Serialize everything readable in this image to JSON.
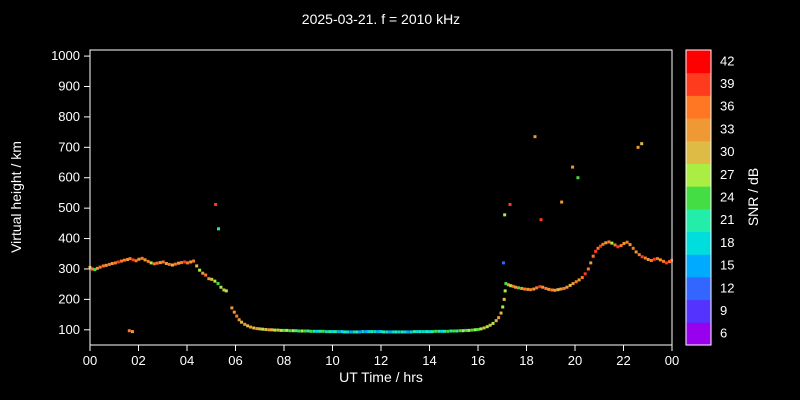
{
  "chart_data": {
    "type": "scatter",
    "title": "2025-03-21. f = 2010 kHz",
    "xlabel": "UT Time / hrs",
    "ylabel": "Virtual height / km",
    "xlim": [
      0,
      24
    ],
    "ylim": [
      50,
      1020
    ],
    "grid": false,
    "background": "#000000",
    "frame_color": "#ffffff",
    "text_color": "#ffffff",
    "x_ticks": {
      "values": [
        0,
        2,
        4,
        6,
        8,
        10,
        12,
        14,
        16,
        18,
        20,
        22,
        24
      ],
      "labels": [
        "00",
        "02",
        "04",
        "06",
        "08",
        "10",
        "12",
        "14",
        "16",
        "18",
        "20",
        "22",
        "00"
      ]
    },
    "y_ticks": [
      100,
      200,
      300,
      400,
      500,
      600,
      700,
      800,
      900,
      1000
    ],
    "colorbar": {
      "label": "SNR / dB",
      "min": 6,
      "max": 42,
      "tick_step": 3,
      "ticks": [
        6,
        9,
        12,
        15,
        18,
        21,
        24,
        27,
        30,
        33,
        36,
        39,
        42
      ],
      "colors": {
        "6": "#9900ee",
        "9": "#5533ff",
        "12": "#3366ff",
        "15": "#00aaff",
        "18": "#00dddd",
        "21": "#22eeaa",
        "24": "#44dd44",
        "27": "#aaee44",
        "30": "#ddbb44",
        "33": "#ee9933",
        "36": "#ff7722",
        "39": "#ff3b1e",
        "42": "#ff0000"
      }
    },
    "points": [
      [
        0.0,
        305,
        34
      ],
      [
        0.1,
        300,
        36
      ],
      [
        0.2,
        298,
        24
      ],
      [
        0.3,
        302,
        33
      ],
      [
        0.42,
        306,
        35
      ],
      [
        0.55,
        310,
        36
      ],
      [
        0.67,
        312,
        34
      ],
      [
        0.8,
        315,
        36
      ],
      [
        0.92,
        318,
        33
      ],
      [
        1.05,
        320,
        36
      ],
      [
        1.17,
        323,
        38
      ],
      [
        1.3,
        326,
        35
      ],
      [
        1.42,
        329,
        36
      ],
      [
        1.55,
        331,
        33
      ],
      [
        1.65,
        334,
        36
      ],
      [
        1.78,
        330,
        39
      ],
      [
        1.9,
        327,
        36
      ],
      [
        2.02,
        332,
        34
      ],
      [
        2.15,
        335,
        36
      ],
      [
        2.27,
        330,
        33
      ],
      [
        2.4,
        325,
        36
      ],
      [
        2.52,
        320,
        27
      ],
      [
        2.65,
        317,
        35
      ],
      [
        2.77,
        319,
        36
      ],
      [
        2.9,
        321,
        34
      ],
      [
        3.02,
        323,
        36
      ],
      [
        3.15,
        318,
        33
      ],
      [
        3.27,
        315,
        36
      ],
      [
        3.4,
        313,
        30
      ],
      [
        3.52,
        316,
        36
      ],
      [
        3.65,
        319,
        34
      ],
      [
        3.77,
        321,
        36
      ],
      [
        3.9,
        323,
        38
      ],
      [
        4.02,
        320,
        36
      ],
      [
        4.15,
        323,
        33
      ],
      [
        4.27,
        326,
        36
      ],
      [
        4.4,
        310,
        30
      ],
      [
        4.52,
        296,
        27
      ],
      [
        4.65,
        286,
        33
      ],
      [
        4.77,
        280,
        36
      ],
      [
        4.9,
        268,
        33
      ],
      [
        5.02,
        266,
        30
      ],
      [
        5.15,
        260,
        27
      ],
      [
        5.28,
        252,
        24
      ],
      [
        5.4,
        240,
        27
      ],
      [
        5.52,
        231,
        30
      ],
      [
        5.62,
        228,
        27
      ],
      [
        1.62,
        97,
        36
      ],
      [
        1.75,
        94,
        33
      ],
      [
        5.18,
        512,
        39
      ],
      [
        5.3,
        432,
        21
      ],
      [
        5.85,
        172,
        33
      ],
      [
        5.95,
        158,
        33
      ],
      [
        6.05,
        145,
        36
      ],
      [
        6.15,
        133,
        33
      ],
      [
        6.25,
        125,
        30
      ],
      [
        6.38,
        118,
        33
      ],
      [
        6.5,
        113,
        30
      ],
      [
        6.62,
        109,
        33
      ],
      [
        6.75,
        106,
        30
      ],
      [
        6.88,
        104,
        33
      ],
      [
        7.0,
        103,
        30
      ],
      [
        7.12,
        102,
        27
      ],
      [
        7.25,
        101,
        30
      ],
      [
        7.38,
        100,
        33
      ],
      [
        7.5,
        100,
        30
      ],
      [
        7.62,
        99,
        27
      ],
      [
        7.75,
        99,
        30
      ],
      [
        7.88,
        98,
        27
      ],
      [
        8.0,
        98,
        24
      ],
      [
        8.12,
        98,
        27
      ],
      [
        8.25,
        97,
        24
      ],
      [
        8.38,
        97,
        27
      ],
      [
        8.5,
        97,
        21
      ],
      [
        8.62,
        96,
        24
      ],
      [
        8.75,
        96,
        27
      ],
      [
        8.88,
        96,
        24
      ],
      [
        9.0,
        96,
        21
      ],
      [
        9.12,
        95,
        24
      ],
      [
        9.25,
        95,
        21
      ],
      [
        9.38,
        95,
        18
      ],
      [
        9.5,
        95,
        21
      ],
      [
        9.62,
        95,
        24
      ],
      [
        9.75,
        94,
        18
      ],
      [
        9.88,
        94,
        21
      ],
      [
        10.0,
        94,
        18
      ],
      [
        10.12,
        94,
        21
      ],
      [
        10.25,
        94,
        15
      ],
      [
        10.38,
        94,
        18
      ],
      [
        10.5,
        93,
        21
      ],
      [
        10.62,
        93,
        18
      ],
      [
        10.75,
        93,
        15
      ],
      [
        10.88,
        93,
        18
      ],
      [
        11.0,
        93,
        21
      ],
      [
        11.12,
        93,
        15
      ],
      [
        11.25,
        94,
        18
      ],
      [
        11.38,
        94,
        15
      ],
      [
        11.5,
        94,
        18
      ],
      [
        11.62,
        94,
        21
      ],
      [
        11.75,
        94,
        18
      ],
      [
        11.88,
        94,
        15
      ],
      [
        12.0,
        94,
        18
      ],
      [
        12.12,
        93,
        21
      ],
      [
        12.25,
        93,
        18
      ],
      [
        12.38,
        93,
        15
      ],
      [
        12.5,
        93,
        18
      ],
      [
        12.62,
        93,
        21
      ],
      [
        12.75,
        93,
        18
      ],
      [
        12.88,
        93,
        21
      ],
      [
        13.0,
        93,
        18
      ],
      [
        13.12,
        93,
        15
      ],
      [
        13.25,
        93,
        18
      ],
      [
        13.38,
        94,
        21
      ],
      [
        13.5,
        94,
        18
      ],
      [
        13.62,
        94,
        21
      ],
      [
        13.75,
        94,
        18
      ],
      [
        13.88,
        94,
        21
      ],
      [
        14.0,
        94,
        18
      ],
      [
        14.12,
        94,
        21
      ],
      [
        14.25,
        95,
        24
      ],
      [
        14.38,
        95,
        21
      ],
      [
        14.5,
        95,
        18
      ],
      [
        14.62,
        95,
        21
      ],
      [
        14.75,
        95,
        24
      ],
      [
        14.88,
        96,
        21
      ],
      [
        15.0,
        96,
        24
      ],
      [
        15.12,
        96,
        21
      ],
      [
        15.25,
        97,
        24
      ],
      [
        15.38,
        97,
        27
      ],
      [
        15.5,
        98,
        24
      ],
      [
        15.62,
        98,
        27
      ],
      [
        15.75,
        99,
        24
      ],
      [
        15.88,
        100,
        27
      ],
      [
        16.0,
        101,
        24
      ],
      [
        16.12,
        103,
        27
      ],
      [
        16.25,
        106,
        30
      ],
      [
        16.38,
        110,
        27
      ],
      [
        16.5,
        115,
        30
      ],
      [
        16.62,
        121,
        27
      ],
      [
        16.75,
        130,
        30
      ],
      [
        16.85,
        140,
        33
      ],
      [
        16.95,
        155,
        30
      ],
      [
        17.02,
        175,
        27
      ],
      [
        17.08,
        200,
        30
      ],
      [
        17.12,
        228,
        27
      ],
      [
        17.05,
        320,
        12
      ],
      [
        17.1,
        478,
        27
      ],
      [
        17.32,
        512,
        39
      ],
      [
        17.15,
        252,
        24
      ],
      [
        17.25,
        248,
        33
      ],
      [
        17.35,
        245,
        27
      ],
      [
        17.45,
        243,
        36
      ],
      [
        17.55,
        240,
        33
      ],
      [
        17.67,
        238,
        24
      ],
      [
        17.8,
        236,
        33
      ],
      [
        17.92,
        234,
        36
      ],
      [
        18.05,
        233,
        33
      ],
      [
        18.17,
        232,
        36
      ],
      [
        18.3,
        234,
        33
      ],
      [
        18.42,
        238,
        36
      ],
      [
        18.55,
        242,
        39
      ],
      [
        18.67,
        240,
        33
      ],
      [
        18.8,
        236,
        36
      ],
      [
        18.92,
        233,
        33
      ],
      [
        19.05,
        231,
        36
      ],
      [
        19.17,
        230,
        33
      ],
      [
        19.3,
        232,
        30
      ],
      [
        19.42,
        234,
        33
      ],
      [
        19.55,
        236,
        36
      ],
      [
        19.67,
        240,
        33
      ],
      [
        19.8,
        246,
        30
      ],
      [
        19.92,
        252,
        33
      ],
      [
        20.05,
        258,
        36
      ],
      [
        20.17,
        264,
        33
      ],
      [
        20.3,
        272,
        36
      ],
      [
        20.42,
        284,
        39
      ],
      [
        20.55,
        300,
        36
      ],
      [
        20.65,
        320,
        33
      ],
      [
        20.75,
        342,
        36
      ],
      [
        20.85,
        358,
        38
      ],
      [
        20.95,
        368,
        36
      ],
      [
        21.05,
        375,
        39
      ],
      [
        21.15,
        381,
        36
      ],
      [
        21.27,
        386,
        33
      ],
      [
        21.4,
        389,
        36
      ],
      [
        21.52,
        385,
        27
      ],
      [
        21.65,
        379,
        36
      ],
      [
        21.77,
        373,
        39
      ],
      [
        21.9,
        377,
        36
      ],
      [
        22.02,
        384,
        33
      ],
      [
        22.15,
        388,
        36
      ],
      [
        22.27,
        380,
        33
      ],
      [
        22.4,
        368,
        36
      ],
      [
        22.52,
        356,
        33
      ],
      [
        22.65,
        347,
        36
      ],
      [
        22.77,
        340,
        39
      ],
      [
        22.9,
        336,
        36
      ],
      [
        23.02,
        331,
        33
      ],
      [
        23.15,
        328,
        36
      ],
      [
        23.27,
        332,
        38
      ],
      [
        23.4,
        334,
        36
      ],
      [
        23.52,
        330,
        33
      ],
      [
        23.65,
        325,
        36
      ],
      [
        23.77,
        320,
        39
      ],
      [
        23.9,
        324,
        36
      ],
      [
        23.98,
        328,
        38
      ],
      [
        18.35,
        735,
        33
      ],
      [
        18.6,
        462,
        39
      ],
      [
        19.45,
        520,
        33
      ],
      [
        19.9,
        635,
        33
      ],
      [
        20.12,
        600,
        24
      ],
      [
        22.6,
        700,
        33
      ],
      [
        22.75,
        712,
        30
      ]
    ]
  }
}
